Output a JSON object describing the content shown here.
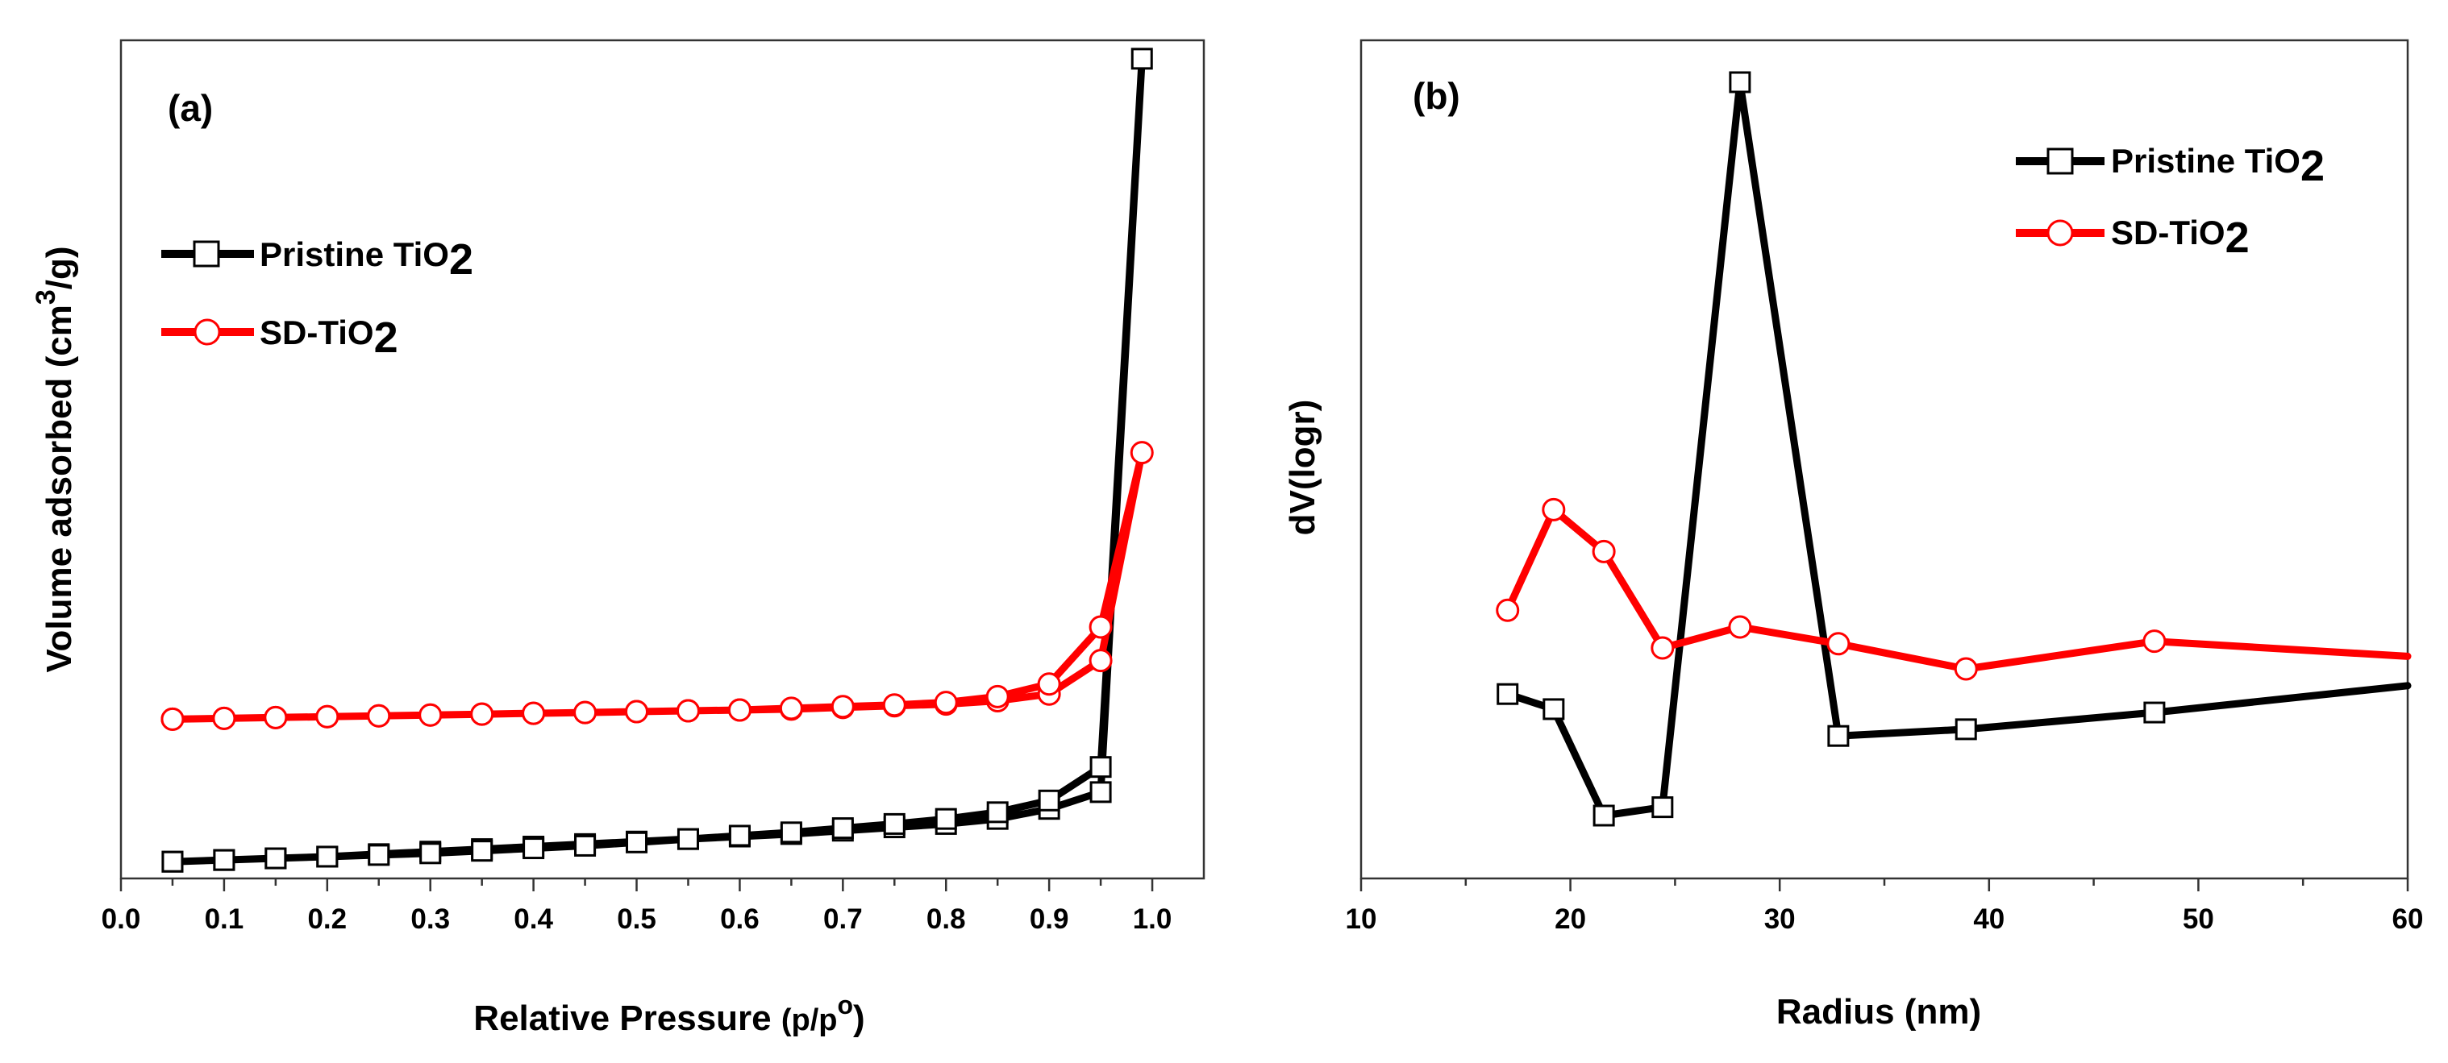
{
  "figure": {
    "panel_a_label": "(a)",
    "panel_b_label": "(b)"
  },
  "chart_data": [
    {
      "type": "line",
      "panel": "(a)",
      "xlabel": "Relative Pressure (p/p°)",
      "xlabel_main": "Relative Pressure ",
      "xlabel_unit": "(p/p",
      "xlabel_sup": "o",
      "xlabel_close": ")",
      "ylabel": "Volume adsorbed (cm3/g)",
      "ylabel_main": "Volume adsorbed (cm",
      "ylabel_sup": "3",
      "ylabel_close": "/g)",
      "xlim": [
        0.0,
        1.05
      ],
      "ylim": [
        0,
        100
      ],
      "xticks": [
        "0.0",
        "0.1",
        "0.2",
        "0.3",
        "0.4",
        "0.5",
        "0.6",
        "0.7",
        "0.8",
        "0.9",
        "1.0"
      ],
      "yticks_shown": false,
      "legend_position": "top-left",
      "series": [
        {
          "name": "Pristine TiO2",
          "name_main": "Pristine TiO",
          "name_sub": "2",
          "color": "#000000",
          "marker": "square",
          "x": [
            0.05,
            0.1,
            0.15,
            0.2,
            0.25,
            0.3,
            0.35,
            0.4,
            0.45,
            0.5,
            0.55,
            0.6,
            0.65,
            0.7,
            0.75,
            0.8,
            0.85,
            0.9,
            0.95,
            0.99,
            0.95,
            0.9,
            0.85,
            0.8,
            0.75,
            0.7,
            0.65,
            0.6,
            0.55,
            0.5,
            0.45,
            0.4,
            0.35,
            0.3,
            0.25,
            0.2,
            0.15,
            0.1,
            0.05
          ],
          "y": [
            2.0,
            2.2,
            2.4,
            2.6,
            2.9,
            3.2,
            3.5,
            3.8,
            4.1,
            4.4,
            4.7,
            5.0,
            5.3,
            5.7,
            6.1,
            6.5,
            7.1,
            8.3,
            10.3,
            97.8,
            13.3,
            9.3,
            7.9,
            7.1,
            6.5,
            6.0,
            5.5,
            5.1,
            4.7,
            4.3,
            3.9,
            3.6,
            3.3,
            3.0,
            2.8,
            2.6,
            2.4,
            2.2,
            2.0
          ]
        },
        {
          "name": "SD-TiO2",
          "name_main": "SD-TiO",
          "name_sub": "2",
          "color": "#ff0000",
          "marker": "circle",
          "x": [
            0.05,
            0.1,
            0.15,
            0.2,
            0.25,
            0.3,
            0.35,
            0.4,
            0.45,
            0.5,
            0.55,
            0.6,
            0.65,
            0.7,
            0.75,
            0.8,
            0.85,
            0.9,
            0.95,
            0.99,
            0.95,
            0.9,
            0.85,
            0.8,
            0.75,
            0.7,
            0.65,
            0.6,
            0.55,
            0.5,
            0.45,
            0.4,
            0.35,
            0.3,
            0.25,
            0.2,
            0.15,
            0.1,
            0.05
          ],
          "y": [
            19.0,
            19.1,
            19.2,
            19.3,
            19.4,
            19.5,
            19.6,
            19.7,
            19.8,
            19.9,
            20.0,
            20.1,
            20.2,
            20.4,
            20.6,
            20.8,
            21.2,
            22.0,
            26.0,
            50.8,
            30.0,
            23.2,
            21.7,
            21.0,
            20.7,
            20.5,
            20.3,
            20.1,
            20.0,
            19.9,
            19.8,
            19.7,
            19.6,
            19.5,
            19.4,
            19.3,
            19.2,
            19.1,
            19.0
          ]
        }
      ]
    },
    {
      "type": "line",
      "panel": "(b)",
      "xlabel": "Radius (nm)",
      "ylabel": "dV(logr)",
      "xlim": [
        10,
        60
      ],
      "ylim": [
        0,
        100
      ],
      "xticks": [
        "10",
        "20",
        "30",
        "40",
        "50",
        "60"
      ],
      "yticks_shown": false,
      "legend_position": "top-right",
      "series": [
        {
          "name": "Pristine TiO2",
          "name_main": "Pristine TiO",
          "name_sub": "2",
          "color": "#000000",
          "marker": "square",
          "x": [
            17.0,
            19.2,
            21.6,
            24.4,
            28.1,
            32.8,
            38.9,
            47.9,
            60.0
          ],
          "y": [
            22.0,
            20.2,
            7.5,
            8.5,
            95.0,
            17.0,
            17.8,
            19.8,
            23.0
          ]
        },
        {
          "name": "SD-TiO2",
          "name_main": "SD-TiO",
          "name_sub": "2",
          "color": "#ff0000",
          "marker": "circle",
          "x": [
            17.0,
            19.2,
            21.6,
            24.4,
            28.1,
            32.8,
            38.9,
            47.9,
            60.0
          ],
          "y": [
            32.0,
            44.0,
            39.0,
            27.5,
            30.0,
            28.0,
            25.0,
            28.3,
            26.5
          ]
        }
      ]
    }
  ]
}
